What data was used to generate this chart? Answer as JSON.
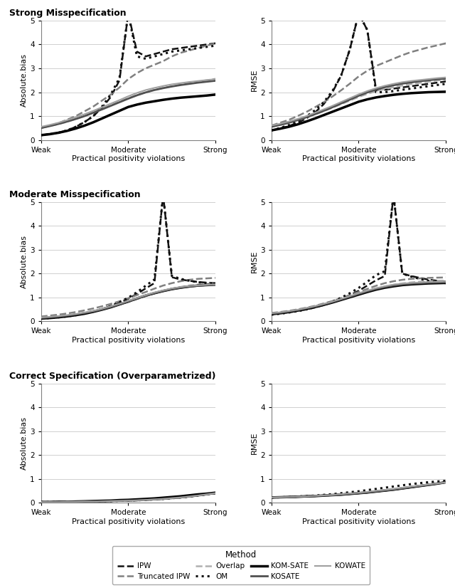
{
  "row_titles": [
    "Strong Misspecification",
    "Moderate Misspecification",
    "Correct Specification (Overparametrized)"
  ],
  "xlabel": "Practical positivity violations",
  "ylim": [
    0,
    5
  ],
  "yticks": [
    0,
    1,
    2,
    3,
    4,
    5
  ],
  "xtick_positions": [
    0,
    0.5,
    1.0
  ],
  "xtick_labels": [
    "Weak",
    "Moderate",
    "Strong"
  ],
  "methods": [
    "IPW",
    "Truncated IPW",
    "Overlap",
    "OM",
    "KOM-SATE",
    "KOSATE",
    "KOWATE"
  ],
  "colors": {
    "IPW": "#111111",
    "Truncated IPW": "#808080",
    "Overlap": "#b0b0b0",
    "OM": "#111111",
    "KOM-SATE": "#000000",
    "KOSATE": "#505050",
    "KOWATE": "#a0a0a0"
  },
  "linestyles": {
    "IPW": "--",
    "Truncated IPW": "--",
    "Overlap": "--",
    "OM": ":",
    "KOM-SATE": "-",
    "KOSATE": "-",
    "KOWATE": "-"
  },
  "linewidths": {
    "IPW": 1.8,
    "Truncated IPW": 1.8,
    "Overlap": 1.8,
    "OM": 2.2,
    "KOM-SATE": 2.5,
    "KOSATE": 2.0,
    "KOWATE": 1.5
  },
  "x_vals": [
    0.0,
    0.05,
    0.1,
    0.15,
    0.2,
    0.25,
    0.3,
    0.35,
    0.4,
    0.45,
    0.5,
    0.55,
    0.6,
    0.65,
    0.7,
    0.75,
    0.8,
    0.85,
    0.9,
    0.95,
    1.0
  ],
  "strong_bias": {
    "IPW": [
      0.2,
      0.25,
      0.3,
      0.4,
      0.55,
      0.75,
      1.0,
      1.35,
      1.8,
      2.5,
      5.3,
      3.7,
      3.5,
      3.6,
      3.7,
      3.8,
      3.85,
      3.9,
      3.95,
      4.0,
      4.05
    ],
    "Truncated IPW": [
      0.5,
      0.6,
      0.7,
      0.85,
      1.0,
      1.2,
      1.4,
      1.65,
      1.9,
      2.2,
      2.55,
      2.8,
      3.0,
      3.15,
      3.3,
      3.5,
      3.65,
      3.75,
      3.85,
      3.95,
      4.05
    ],
    "Overlap": [
      0.5,
      0.58,
      0.66,
      0.76,
      0.88,
      1.0,
      1.15,
      1.3,
      1.45,
      1.6,
      1.75,
      1.88,
      2.0,
      2.1,
      2.18,
      2.25,
      2.32,
      2.38,
      2.44,
      2.5,
      2.56
    ],
    "OM": [
      0.2,
      0.25,
      0.3,
      0.4,
      0.55,
      0.75,
      1.0,
      1.4,
      1.9,
      2.6,
      5.3,
      3.5,
      3.4,
      3.5,
      3.6,
      3.7,
      3.75,
      3.8,
      3.85,
      3.9,
      3.95
    ],
    "KOM-SATE": [
      0.2,
      0.24,
      0.3,
      0.38,
      0.48,
      0.6,
      0.74,
      0.9,
      1.06,
      1.22,
      1.38,
      1.48,
      1.56,
      1.62,
      1.68,
      1.73,
      1.77,
      1.8,
      1.83,
      1.86,
      1.9
    ],
    "KOSATE": [
      0.5,
      0.58,
      0.67,
      0.77,
      0.88,
      1.0,
      1.14,
      1.28,
      1.43,
      1.58,
      1.73,
      1.87,
      1.99,
      2.09,
      2.17,
      2.24,
      2.3,
      2.35,
      2.4,
      2.44,
      2.48
    ],
    "KOWATE": [
      0.55,
      0.63,
      0.72,
      0.83,
      0.95,
      1.08,
      1.22,
      1.37,
      1.52,
      1.67,
      1.83,
      1.97,
      2.09,
      2.18,
      2.26,
      2.33,
      2.38,
      2.43,
      2.47,
      2.51,
      2.55
    ]
  },
  "strong_rmse": {
    "IPW": [
      0.4,
      0.48,
      0.58,
      0.72,
      0.9,
      1.15,
      1.5,
      2.0,
      2.7,
      3.8,
      5.3,
      4.6,
      2.1,
      2.1,
      2.15,
      2.2,
      2.25,
      2.3,
      2.35,
      2.4,
      2.45
    ],
    "Truncated IPW": [
      0.6,
      0.72,
      0.84,
      1.0,
      1.17,
      1.37,
      1.58,
      1.82,
      2.08,
      2.36,
      2.66,
      2.9,
      3.1,
      3.25,
      3.4,
      3.55,
      3.68,
      3.78,
      3.88,
      3.96,
      4.05
    ],
    "Overlap": [
      0.55,
      0.63,
      0.72,
      0.82,
      0.94,
      1.07,
      1.2,
      1.35,
      1.5,
      1.65,
      1.8,
      1.93,
      2.04,
      2.13,
      2.21,
      2.28,
      2.34,
      2.39,
      2.44,
      2.49,
      2.54
    ],
    "OM": [
      0.4,
      0.5,
      0.62,
      0.78,
      0.98,
      1.24,
      1.58,
      2.05,
      2.7,
      3.8,
      5.3,
      4.6,
      2.0,
      2.0,
      2.05,
      2.1,
      2.15,
      2.2,
      2.25,
      2.3,
      2.35
    ],
    "KOM-SATE": [
      0.4,
      0.47,
      0.55,
      0.65,
      0.77,
      0.9,
      1.04,
      1.18,
      1.32,
      1.46,
      1.6,
      1.7,
      1.78,
      1.84,
      1.89,
      1.93,
      1.96,
      1.98,
      2.0,
      2.01,
      2.02
    ],
    "KOSATE": [
      0.55,
      0.63,
      0.72,
      0.83,
      0.95,
      1.08,
      1.22,
      1.37,
      1.53,
      1.69,
      1.85,
      1.99,
      2.11,
      2.21,
      2.29,
      2.36,
      2.41,
      2.46,
      2.5,
      2.54,
      2.57
    ],
    "KOWATE": [
      0.6,
      0.68,
      0.77,
      0.88,
      1.0,
      1.14,
      1.28,
      1.43,
      1.59,
      1.75,
      1.91,
      2.05,
      2.17,
      2.27,
      2.35,
      2.42,
      2.47,
      2.51,
      2.55,
      2.59,
      2.62
    ]
  },
  "moderate_bias": {
    "IPW": [
      0.12,
      0.15,
      0.18,
      0.22,
      0.27,
      0.34,
      0.42,
      0.52,
      0.64,
      0.78,
      0.95,
      1.15,
      1.38,
      1.6,
      5.3,
      1.85,
      1.75,
      1.7,
      1.65,
      1.62,
      1.6
    ],
    "Truncated IPW": [
      0.2,
      0.24,
      0.28,
      0.33,
      0.39,
      0.46,
      0.54,
      0.63,
      0.73,
      0.84,
      0.97,
      1.1,
      1.23,
      1.37,
      1.5,
      1.6,
      1.68,
      1.74,
      1.78,
      1.8,
      1.82
    ],
    "Overlap": [
      0.15,
      0.18,
      0.21,
      0.25,
      0.3,
      0.36,
      0.43,
      0.51,
      0.6,
      0.7,
      0.81,
      0.93,
      1.05,
      1.17,
      1.28,
      1.37,
      1.44,
      1.5,
      1.54,
      1.57,
      1.6
    ],
    "OM": [
      0.12,
      0.14,
      0.17,
      0.21,
      0.26,
      0.33,
      0.41,
      0.51,
      0.64,
      0.8,
      0.99,
      1.22,
      1.49,
      1.75,
      5.3,
      1.9,
      1.78,
      1.7,
      1.64,
      1.6,
      1.57
    ],
    "KOM-SATE": [
      0.12,
      0.14,
      0.17,
      0.21,
      0.26,
      0.32,
      0.4,
      0.49,
      0.59,
      0.71,
      0.83,
      0.96,
      1.08,
      1.18,
      1.27,
      1.35,
      1.41,
      1.46,
      1.5,
      1.52,
      1.54
    ],
    "KOSATE": [
      0.14,
      0.17,
      0.2,
      0.24,
      0.29,
      0.35,
      0.42,
      0.5,
      0.6,
      0.71,
      0.83,
      0.95,
      1.07,
      1.18,
      1.27,
      1.35,
      1.41,
      1.46,
      1.49,
      1.52,
      1.54
    ],
    "KOWATE": [
      0.16,
      0.19,
      0.22,
      0.26,
      0.31,
      0.37,
      0.44,
      0.53,
      0.63,
      0.74,
      0.86,
      0.98,
      1.1,
      1.21,
      1.3,
      1.38,
      1.44,
      1.48,
      1.51,
      1.53,
      1.55
    ]
  },
  "moderate_rmse": {
    "IPW": [
      0.3,
      0.34,
      0.38,
      0.43,
      0.5,
      0.58,
      0.68,
      0.8,
      0.94,
      1.1,
      1.28,
      1.5,
      1.72,
      1.9,
      5.3,
      2.0,
      1.9,
      1.82,
      1.75,
      1.7,
      1.66
    ],
    "Truncated IPW": [
      0.35,
      0.39,
      0.44,
      0.5,
      0.57,
      0.65,
      0.75,
      0.85,
      0.97,
      1.1,
      1.23,
      1.36,
      1.49,
      1.6,
      1.68,
      1.74,
      1.78,
      1.8,
      1.82,
      1.83,
      1.84
    ],
    "Overlap": [
      0.3,
      0.34,
      0.38,
      0.44,
      0.51,
      0.59,
      0.68,
      0.79,
      0.9,
      1.02,
      1.14,
      1.26,
      1.37,
      1.46,
      1.53,
      1.59,
      1.63,
      1.66,
      1.68,
      1.7,
      1.71
    ],
    "OM": [
      0.28,
      0.32,
      0.37,
      0.43,
      0.5,
      0.59,
      0.7,
      0.83,
      0.99,
      1.18,
      1.4,
      1.66,
      1.94,
      2.1,
      5.3,
      2.0,
      1.88,
      1.78,
      1.7,
      1.64,
      1.6
    ],
    "KOM-SATE": [
      0.3,
      0.34,
      0.39,
      0.45,
      0.52,
      0.6,
      0.69,
      0.79,
      0.9,
      1.01,
      1.12,
      1.23,
      1.33,
      1.41,
      1.47,
      1.52,
      1.55,
      1.57,
      1.59,
      1.6,
      1.61
    ],
    "KOSATE": [
      0.32,
      0.36,
      0.41,
      0.47,
      0.54,
      0.62,
      0.71,
      0.81,
      0.92,
      1.03,
      1.15,
      1.26,
      1.36,
      1.44,
      1.5,
      1.55,
      1.58,
      1.6,
      1.62,
      1.63,
      1.64
    ],
    "KOWATE": [
      0.34,
      0.38,
      0.43,
      0.49,
      0.56,
      0.64,
      0.73,
      0.83,
      0.94,
      1.06,
      1.18,
      1.29,
      1.39,
      1.47,
      1.54,
      1.58,
      1.61,
      1.63,
      1.65,
      1.66,
      1.67
    ]
  },
  "correct_bias": {
    "IPW": [
      0.03,
      0.03,
      0.03,
      0.04,
      0.04,
      0.05,
      0.05,
      0.06,
      0.07,
      0.08,
      0.09,
      0.1,
      0.12,
      0.14,
      0.16,
      0.19,
      0.22,
      0.26,
      0.3,
      0.35,
      0.4
    ],
    "Truncated IPW": [
      0.03,
      0.03,
      0.03,
      0.04,
      0.04,
      0.05,
      0.05,
      0.06,
      0.07,
      0.08,
      0.09,
      0.1,
      0.12,
      0.14,
      0.16,
      0.19,
      0.22,
      0.26,
      0.3,
      0.35,
      0.4
    ],
    "Overlap": [
      0.03,
      0.03,
      0.03,
      0.04,
      0.04,
      0.05,
      0.05,
      0.06,
      0.07,
      0.08,
      0.09,
      0.1,
      0.12,
      0.14,
      0.16,
      0.19,
      0.22,
      0.26,
      0.3,
      0.35,
      0.4
    ],
    "OM": [
      0.03,
      0.03,
      0.03,
      0.04,
      0.04,
      0.05,
      0.05,
      0.06,
      0.07,
      0.08,
      0.09,
      0.1,
      0.12,
      0.14,
      0.16,
      0.19,
      0.22,
      0.26,
      0.3,
      0.35,
      0.4
    ],
    "KOM-SATE": [
      0.03,
      0.03,
      0.04,
      0.04,
      0.05,
      0.06,
      0.07,
      0.08,
      0.09,
      0.11,
      0.12,
      0.14,
      0.16,
      0.18,
      0.21,
      0.24,
      0.27,
      0.31,
      0.35,
      0.38,
      0.42
    ],
    "KOSATE": [
      0.03,
      0.03,
      0.03,
      0.04,
      0.04,
      0.05,
      0.05,
      0.06,
      0.07,
      0.08,
      0.09,
      0.1,
      0.12,
      0.14,
      0.16,
      0.19,
      0.22,
      0.26,
      0.3,
      0.35,
      0.4
    ],
    "KOWATE": [
      0.03,
      0.03,
      0.03,
      0.04,
      0.04,
      0.05,
      0.05,
      0.06,
      0.07,
      0.08,
      0.09,
      0.1,
      0.12,
      0.14,
      0.16,
      0.19,
      0.22,
      0.26,
      0.3,
      0.35,
      0.4
    ]
  },
  "correct_rmse": {
    "IPW": [
      0.22,
      0.23,
      0.24,
      0.25,
      0.27,
      0.28,
      0.3,
      0.32,
      0.34,
      0.37,
      0.4,
      0.43,
      0.47,
      0.51,
      0.55,
      0.6,
      0.65,
      0.7,
      0.75,
      0.8,
      0.86
    ],
    "Truncated IPW": [
      0.22,
      0.23,
      0.24,
      0.25,
      0.27,
      0.28,
      0.3,
      0.32,
      0.34,
      0.37,
      0.4,
      0.43,
      0.47,
      0.51,
      0.55,
      0.6,
      0.65,
      0.7,
      0.75,
      0.8,
      0.86
    ],
    "Overlap": [
      0.22,
      0.23,
      0.24,
      0.25,
      0.27,
      0.28,
      0.3,
      0.32,
      0.34,
      0.37,
      0.4,
      0.43,
      0.47,
      0.51,
      0.55,
      0.6,
      0.65,
      0.7,
      0.75,
      0.8,
      0.86
    ],
    "OM": [
      0.22,
      0.23,
      0.24,
      0.26,
      0.28,
      0.3,
      0.33,
      0.36,
      0.4,
      0.44,
      0.48,
      0.53,
      0.58,
      0.63,
      0.68,
      0.73,
      0.78,
      0.82,
      0.86,
      0.89,
      0.92
    ],
    "KOM-SATE": [
      0.22,
      0.23,
      0.24,
      0.25,
      0.27,
      0.28,
      0.3,
      0.32,
      0.34,
      0.37,
      0.4,
      0.43,
      0.47,
      0.51,
      0.55,
      0.6,
      0.65,
      0.7,
      0.75,
      0.8,
      0.86
    ],
    "KOSATE": [
      0.22,
      0.23,
      0.24,
      0.25,
      0.27,
      0.28,
      0.3,
      0.32,
      0.34,
      0.37,
      0.4,
      0.43,
      0.47,
      0.51,
      0.55,
      0.6,
      0.65,
      0.7,
      0.75,
      0.8,
      0.86
    ],
    "KOWATE": [
      0.22,
      0.23,
      0.24,
      0.25,
      0.27,
      0.29,
      0.31,
      0.33,
      0.36,
      0.39,
      0.42,
      0.46,
      0.5,
      0.54,
      0.58,
      0.63,
      0.68,
      0.72,
      0.77,
      0.81,
      0.85
    ]
  },
  "background_color": "#ffffff",
  "legend_title": "Method"
}
